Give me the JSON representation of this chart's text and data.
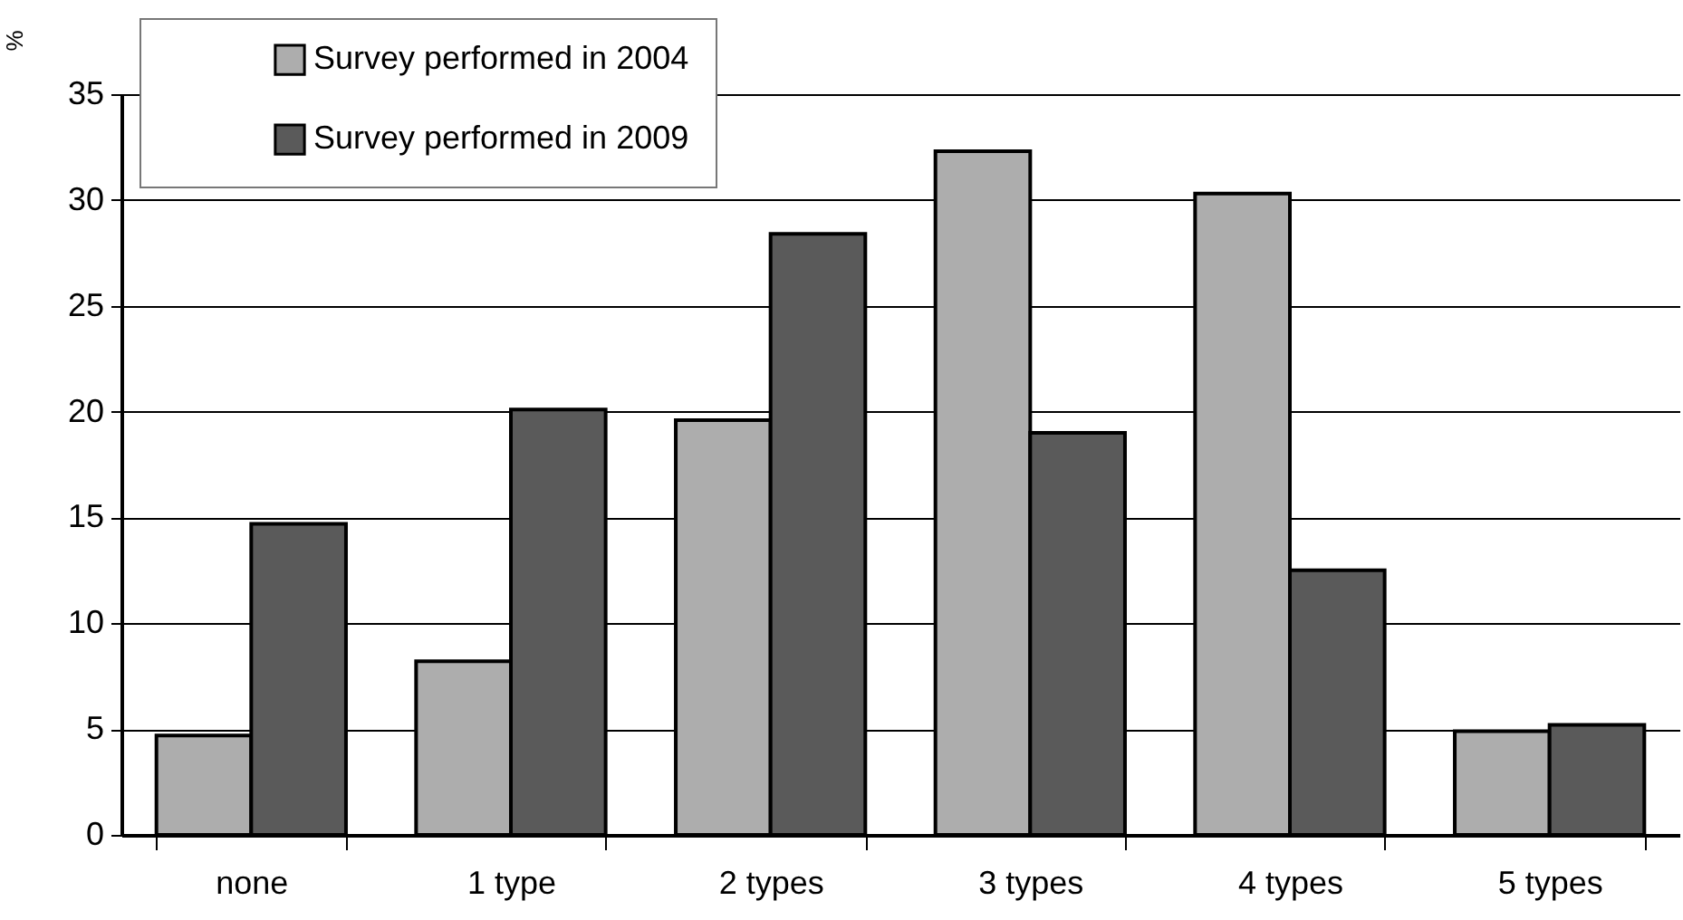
{
  "chart_data": {
    "type": "bar",
    "ylabel": "%",
    "categories": [
      "none",
      "1 type",
      "2 types",
      "3 types",
      "4 types",
      "5 types"
    ],
    "series": [
      {
        "name": "Survey performed in 2004",
        "color": "#adadad",
        "values": [
          4.7,
          8.2,
          19.6,
          32.3,
          30.3,
          4.9
        ]
      },
      {
        "name": "Survey performed in 2009",
        "color": "#5a5a5a",
        "values": [
          14.7,
          20.1,
          28.4,
          19.0,
          12.5,
          5.2
        ]
      }
    ],
    "ylim": [
      0,
      35
    ],
    "yticks": [
      0,
      5,
      10,
      15,
      20,
      25,
      30,
      35
    ],
    "grid": "y",
    "legend": "top left"
  }
}
